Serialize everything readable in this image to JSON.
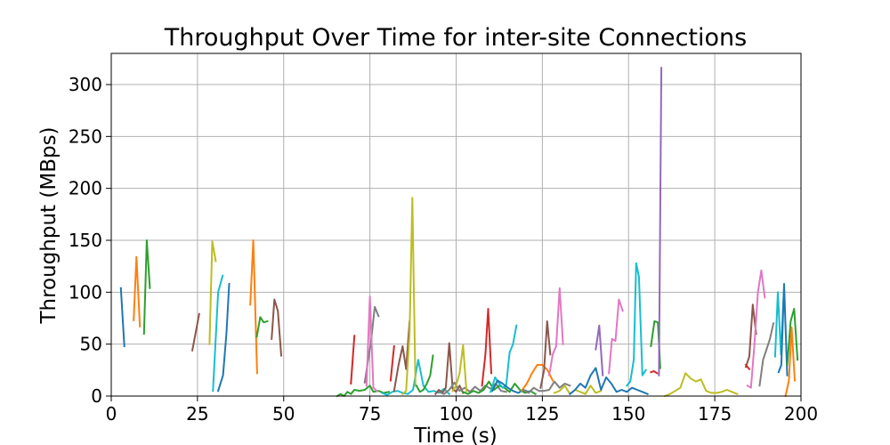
{
  "chart_data": {
    "type": "line",
    "title": "Throughput Over Time for inter-site Connections",
    "xlabel": "Time (s)",
    "ylabel": "Throughput (MBps)",
    "xlim": [
      0,
      200
    ],
    "ylim": [
      0,
      330
    ],
    "xticks": [
      0,
      25,
      50,
      75,
      100,
      125,
      150,
      175,
      200
    ],
    "yticks": [
      0,
      50,
      100,
      150,
      200,
      250,
      300
    ],
    "grid": true,
    "legend": "none",
    "colors": [
      "#1f77b4",
      "#ff7f0e",
      "#2ca02c",
      "#d62728",
      "#9467bd",
      "#8c564b",
      "#e377c2",
      "#7f7f7f",
      "#bcbd22",
      "#17becf"
    ],
    "series": [
      {
        "color": "#1f77b4",
        "x": [
          2.8,
          3.8
        ],
        "y": [
          104,
          48
        ]
      },
      {
        "color": "#ff7f0e",
        "x": [
          6.5,
          7.3,
          8.3
        ],
        "y": [
          73,
          134,
          67
        ]
      },
      {
        "color": "#2ca02c",
        "x": [
          9.5,
          10.3,
          11.2
        ],
        "y": [
          60,
          150,
          104
        ]
      },
      {
        "color": "#8c564b",
        "x": [
          23.5,
          25.5
        ],
        "y": [
          44,
          79
        ]
      },
      {
        "color": "#bcbd22",
        "x": [
          28.5,
          29.3,
          30.3
        ],
        "y": [
          50,
          149,
          130
        ]
      },
      {
        "color": "#17becf",
        "x": [
          29.5,
          31,
          32.3
        ],
        "y": [
          5,
          100,
          116
        ]
      },
      {
        "color": "#1f77b4",
        "x": [
          31,
          32.4,
          33.4,
          34.2
        ],
        "y": [
          5,
          20,
          60,
          108
        ]
      },
      {
        "color": "#ff7f0e",
        "x": [
          40.3,
          41.2,
          42.3
        ],
        "y": [
          88,
          150,
          22
        ]
      },
      {
        "color": "#2ca02c",
        "x": [
          42.2,
          43.2,
          44.2,
          45.3
        ],
        "y": [
          57,
          76,
          71,
          72
        ]
      },
      {
        "color": "#8c564b",
        "x": [
          46.5,
          47.3,
          48.3,
          49.3
        ],
        "y": [
          55,
          93,
          82,
          39
        ]
      },
      {
        "color": "#2ca02c",
        "x": [
          65.5,
          66.5,
          67.5,
          68.5,
          69.5,
          70.5,
          72,
          73.5,
          75,
          76,
          77.5,
          79,
          80.5
        ],
        "y": [
          0,
          2,
          0,
          4,
          2,
          6,
          5,
          6,
          10,
          4,
          5,
          3,
          4
        ]
      },
      {
        "color": "#d62728",
        "x": [
          69.5,
          70.5
        ],
        "y": [
          12,
          58
        ]
      },
      {
        "color": "#7f7f7f",
        "x": [
          73.5,
          75.3,
          76.4,
          77.5
        ],
        "y": [
          13,
          52,
          86,
          77
        ]
      },
      {
        "color": "#e377c2",
        "x": [
          74,
          75,
          76,
          77
        ],
        "y": [
          10,
          96,
          8,
          5
        ]
      },
      {
        "color": "#d62728",
        "x": [
          81,
          82
        ],
        "y": [
          15,
          48
        ]
      },
      {
        "color": "#17becf",
        "x": [
          78.5,
          80,
          81.5,
          83,
          84.5,
          86,
          87.5,
          89,
          90.5,
          92,
          93.5,
          95,
          96.5,
          98
        ],
        "y": [
          3,
          1,
          4,
          5,
          3,
          2,
          6,
          35,
          10,
          4,
          5,
          3,
          7,
          2
        ]
      },
      {
        "color": "#8c564b",
        "x": [
          82,
          83.3,
          84.5,
          85.5,
          86.5
        ],
        "y": [
          5,
          30,
          48,
          26,
          72
        ]
      },
      {
        "color": "#bcbd22",
        "x": [
          84.5,
          85.5,
          86.5,
          87.3,
          88.2
        ],
        "y": [
          2,
          5,
          60,
          191,
          10
        ]
      },
      {
        "color": "#2ca02c",
        "x": [
          88.5,
          89.5,
          90.5,
          91.5,
          92.5,
          93.3
        ],
        "y": [
          10,
          4,
          6,
          12,
          20,
          39
        ]
      },
      {
        "color": "#8c564b",
        "x": [
          94,
          95,
          96,
          97,
          98,
          99,
          100,
          101,
          102
        ],
        "y": [
          2,
          6,
          3,
          8,
          51,
          7,
          4,
          10,
          3
        ]
      },
      {
        "color": "#7f7f7f",
        "x": [
          95,
          96.5,
          98,
          99.5,
          101,
          102.5,
          104,
          105.5,
          107,
          108.5,
          110,
          111.5,
          113,
          114.5
        ],
        "y": [
          4,
          2,
          6,
          13,
          5,
          8,
          4,
          9,
          5,
          10,
          7,
          12,
          5,
          4
        ]
      },
      {
        "color": "#bcbd22",
        "x": [
          99,
          100,
          101,
          102,
          103
        ],
        "y": [
          5,
          10,
          22,
          49,
          5
        ]
      },
      {
        "color": "#d62728",
        "x": [
          107.5,
          108.5,
          109.3,
          110.2
        ],
        "y": [
          10,
          40,
          84,
          22
        ]
      },
      {
        "color": "#2ca02c",
        "x": [
          102,
          103.5,
          105,
          106.5,
          108,
          109.5,
          111,
          112.5,
          114,
          115.5,
          117,
          118.5,
          120,
          121.5,
          123
        ],
        "y": [
          4,
          2,
          5,
          3,
          6,
          14,
          6,
          10,
          8,
          4,
          12,
          6,
          3,
          5,
          2
        ]
      },
      {
        "color": "#17becf",
        "x": [
          110,
          111.3,
          112.5,
          113.5,
          114.5,
          115.5,
          116.5,
          117.5
        ],
        "y": [
          4,
          18,
          12,
          8,
          10,
          42,
          50,
          68
        ]
      },
      {
        "color": "#1f77b4",
        "x": [
          110.5,
          112,
          113.5,
          115,
          116.5,
          118,
          119.5,
          121
        ],
        "y": [
          5,
          15,
          12,
          8,
          5,
          3,
          6,
          4
        ]
      },
      {
        "color": "#ff7f0e",
        "x": [
          119,
          120.5,
          122,
          123.5,
          125,
          126.5,
          128
        ],
        "y": [
          5,
          12,
          22,
          30,
          30,
          25,
          15
        ]
      },
      {
        "color": "#7f7f7f",
        "x": [
          119.5,
          121,
          122.5,
          124,
          125.5,
          127,
          128.5,
          130,
          131.5,
          133
        ],
        "y": [
          6,
          3,
          8,
          5,
          5,
          6,
          14,
          8,
          12,
          10
        ]
      },
      {
        "color": "#8c564b",
        "x": [
          124.5,
          125.5,
          126.4,
          127.3
        ],
        "y": [
          8,
          25,
          72,
          40
        ]
      },
      {
        "color": "#e377c2",
        "x": [
          127,
          128,
          129,
          130,
          131
        ],
        "y": [
          20,
          40,
          48,
          104,
          50
        ]
      },
      {
        "color": "#bcbd22",
        "x": [
          128.5,
          130,
          131.5,
          133,
          134.5,
          136,
          137.5,
          139,
          140.5,
          142
        ],
        "y": [
          3,
          5,
          10,
          2,
          6,
          4,
          2,
          10,
          3,
          5
        ]
      },
      {
        "color": "#1f77b4",
        "x": [
          133,
          134.5,
          136,
          137.5,
          139,
          140.5,
          142,
          143.5,
          145,
          146.5,
          148,
          149.5,
          151,
          152.5,
          154,
          155.5
        ],
        "y": [
          2,
          6,
          12,
          8,
          20,
          27,
          6,
          18,
          12,
          4,
          6,
          4,
          8,
          6,
          4,
          2
        ]
      },
      {
        "color": "#9467bd",
        "x": [
          140.5,
          141.5,
          142.5
        ],
        "y": [
          45,
          68,
          20
        ]
      },
      {
        "color": "#e377c2",
        "x": [
          144.3,
          145.2,
          146.2,
          147.2,
          148.3
        ],
        "y": [
          22,
          55,
          53,
          93,
          82
        ]
      },
      {
        "color": "#17becf",
        "x": [
          149.5,
          150.5,
          151.5,
          152.2,
          153,
          154,
          155
        ],
        "y": [
          10,
          14,
          35,
          128,
          115,
          20,
          25
        ]
      },
      {
        "color": "#2ca02c",
        "x": [
          156.5,
          157.5,
          158.5,
          159.2
        ],
        "y": [
          48,
          72,
          71,
          27
        ]
      },
      {
        "color": "#d62728",
        "x": [
          156.5,
          157.3,
          158.3
        ],
        "y": [
          23,
          24,
          22
        ]
      },
      {
        "color": "#9467bd",
        "x": [
          158.8,
          159.5
        ],
        "y": [
          20,
          316
        ]
      },
      {
        "color": "#bcbd22",
        "x": [
          160.5,
          162,
          163.5,
          165,
          166.5,
          168,
          169.5,
          171,
          172.5,
          174,
          175.5,
          177,
          178.5,
          180,
          181.5
        ],
        "y": [
          0,
          2,
          5,
          8,
          22,
          17,
          14,
          16,
          5,
          3,
          3,
          4,
          6,
          4,
          2
        ]
      },
      {
        "color": "#8c564b",
        "x": [
          184,
          185,
          186,
          187
        ],
        "y": [
          28,
          38,
          88,
          60
        ]
      },
      {
        "color": "#e377c2",
        "x": [
          184.5,
          185.5,
          186.5,
          187.5,
          188.5,
          189.5
        ],
        "y": [
          10,
          8,
          50,
          100,
          121,
          95
        ]
      },
      {
        "color": "#7f7f7f",
        "x": [
          188,
          189,
          190,
          191,
          192
        ],
        "y": [
          10,
          35,
          45,
          55,
          70
        ]
      },
      {
        "color": "#d62728",
        "x": [
          184,
          185
        ],
        "y": [
          30,
          26
        ]
      },
      {
        "color": "#17becf",
        "x": [
          192.5,
          193.3,
          194.2,
          195
        ],
        "y": [
          38,
          100,
          40,
          100
        ]
      },
      {
        "color": "#1f77b4",
        "x": [
          193.5,
          194.3,
          195.1,
          196
        ],
        "y": [
          23,
          30,
          108,
          20
        ]
      },
      {
        "color": "#2ca02c",
        "x": [
          196,
          197,
          198,
          199
        ],
        "y": [
          30,
          72,
          84,
          35
        ]
      },
      {
        "color": "#ff7f0e",
        "x": [
          195.5,
          196.5,
          197.3,
          198.2
        ],
        "y": [
          0,
          15,
          66,
          15
        ]
      }
    ]
  }
}
